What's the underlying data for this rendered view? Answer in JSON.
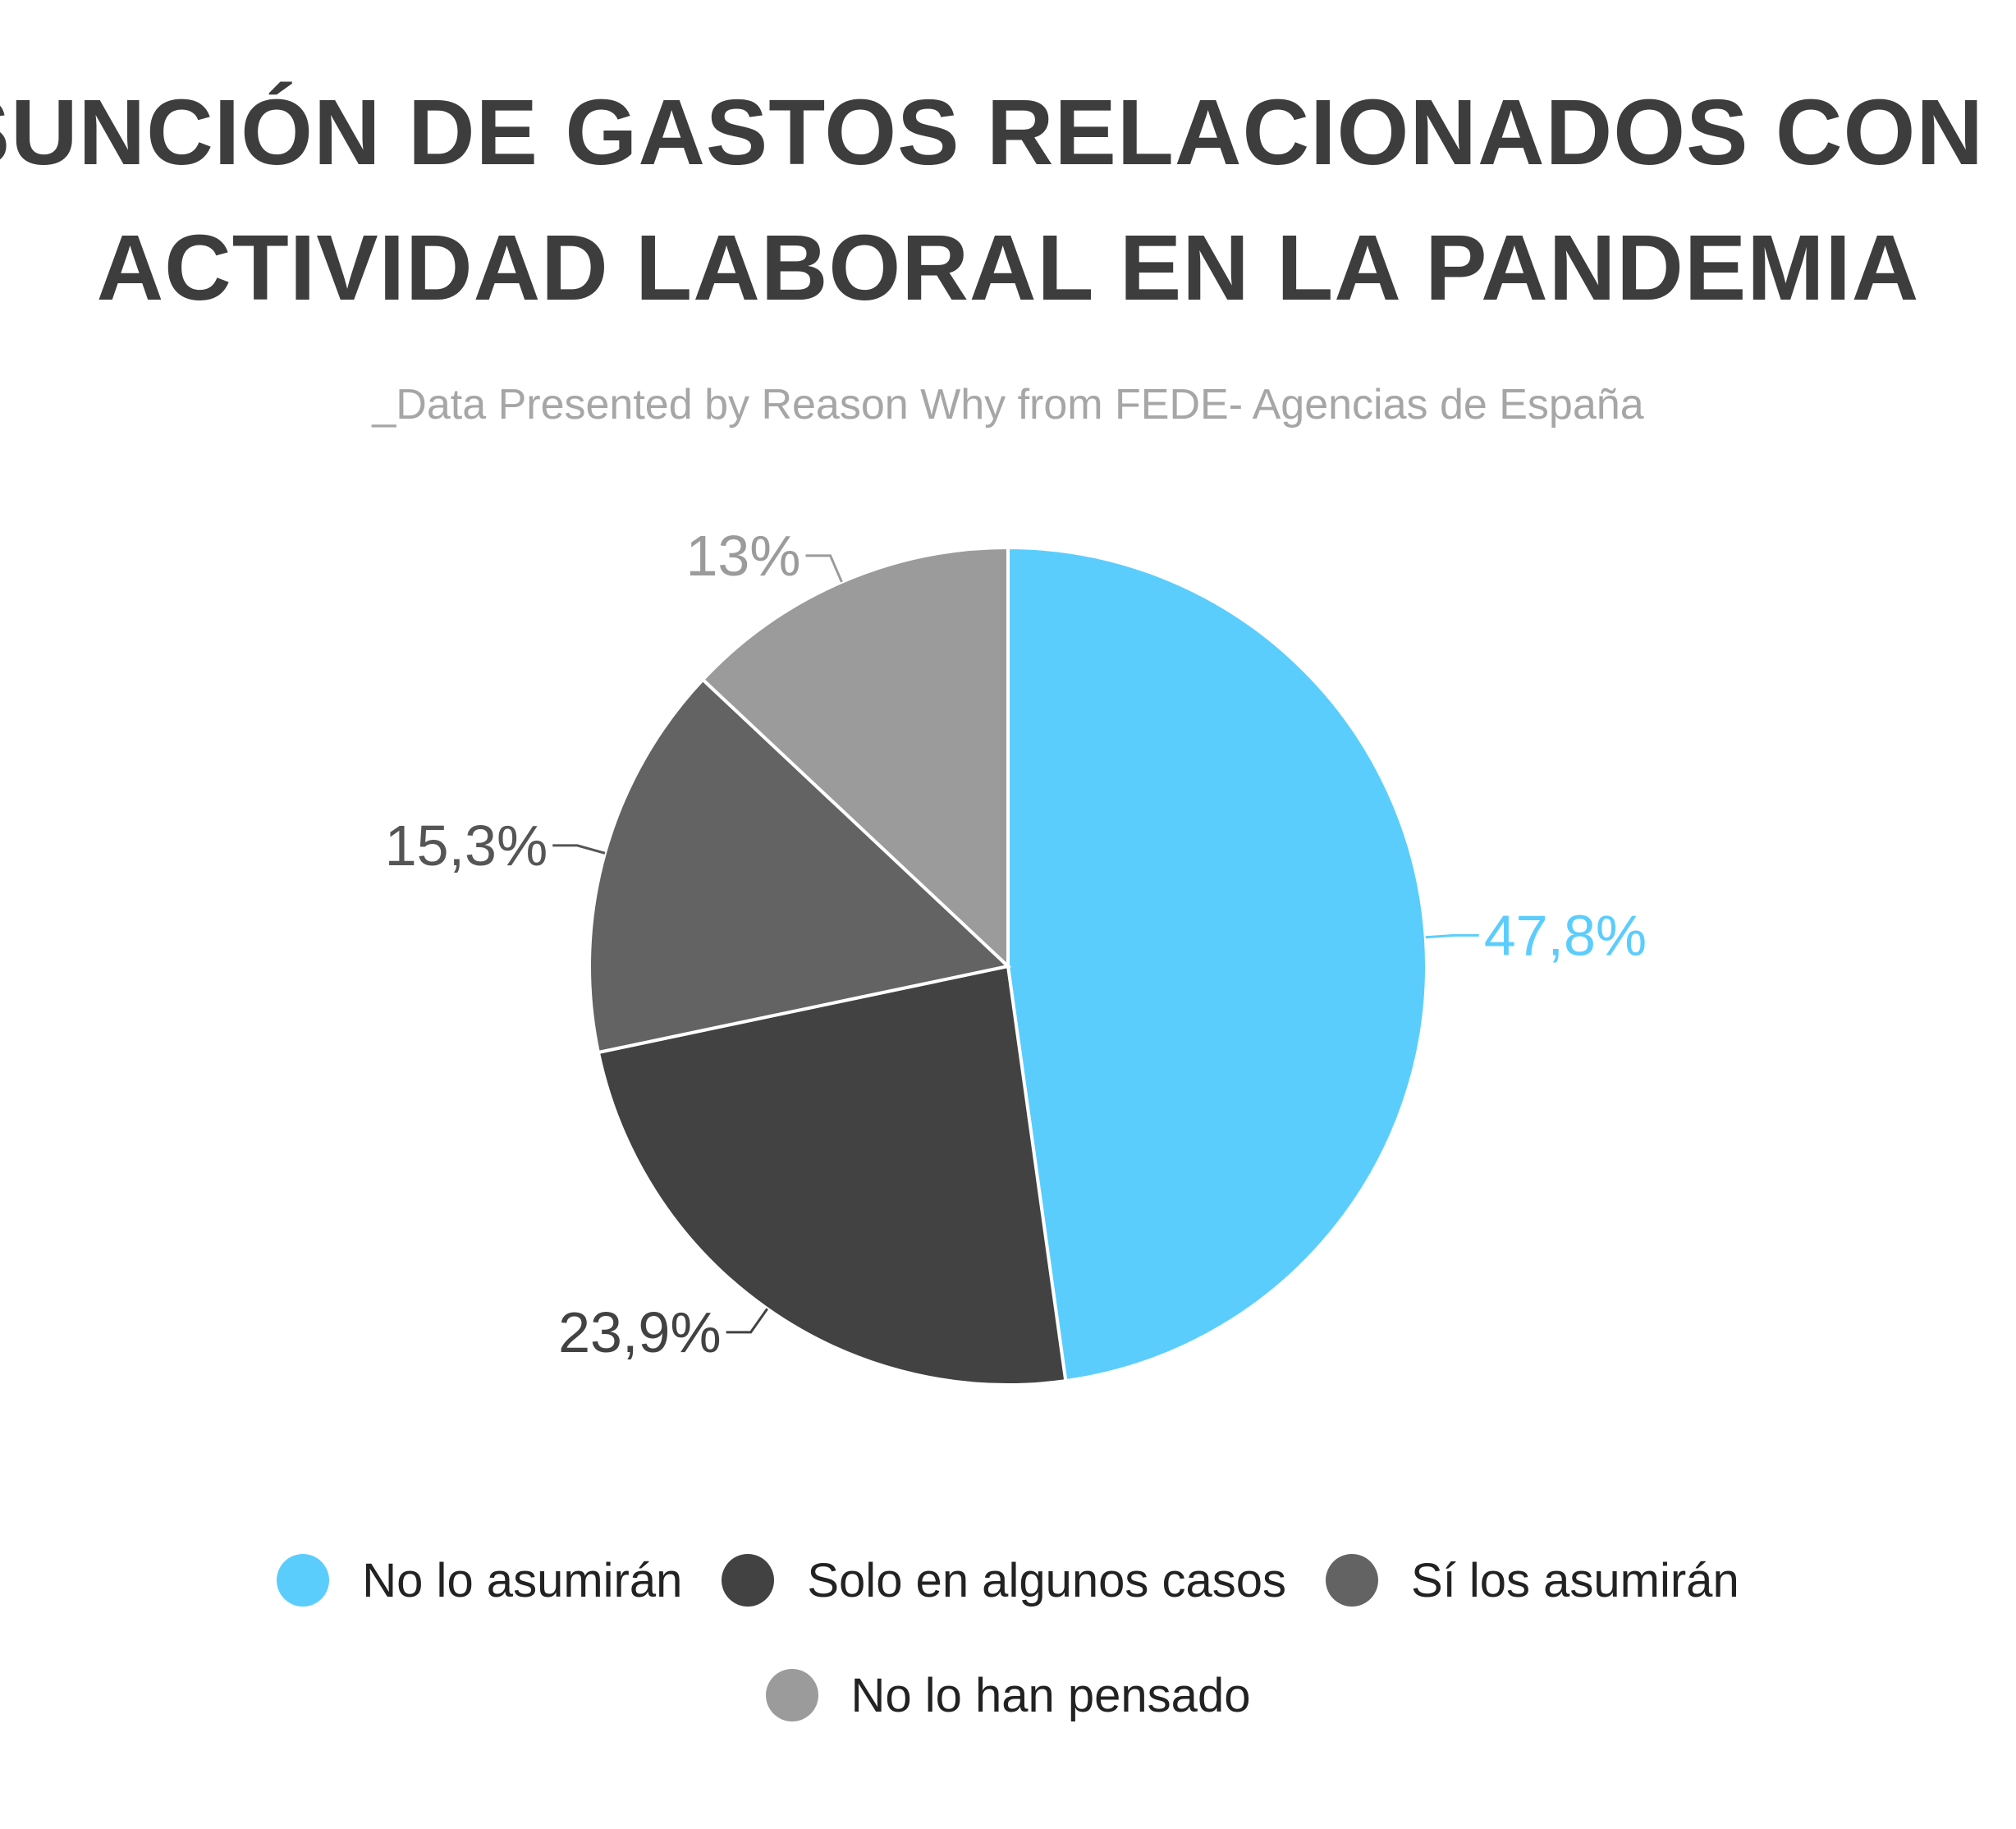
{
  "title_lines": [
    "ASUNCIÓN DE GASTOS RELACIONADOS CON LA",
    "ACTIVIDAD LABORAL EN LA PANDEMIA"
  ],
  "subtitle": "_Data Presented by Reason Why from FEDE- Agencias de España",
  "chart_data": {
    "type": "pie",
    "title": "ASUNCIÓN DE GASTOS RELACIONADOS CON LA ACTIVIDAD LABORAL EN LA PANDEMIA",
    "subtitle": "_Data Presented by Reason Why from FEDE- Agencias de España",
    "legend_position": "bottom",
    "start_angle": "12 o'clock, clockwise",
    "categories": [
      "No lo asumirán",
      "Solo en algunos casos",
      "Sí los asumirán",
      "No lo han pensado"
    ],
    "values": [
      47.8,
      23.9,
      15.3,
      13
    ],
    "labels": [
      "47,8%",
      "23,9%",
      "15,3%",
      "13%"
    ],
    "colors": [
      "#5bcdfd",
      "#424242",
      "#636363",
      "#9b9b9b"
    ]
  },
  "colors": {
    "title": "#3d3d3d",
    "subtitle": "#a6a6a6",
    "slice_border": "#ffffff"
  }
}
